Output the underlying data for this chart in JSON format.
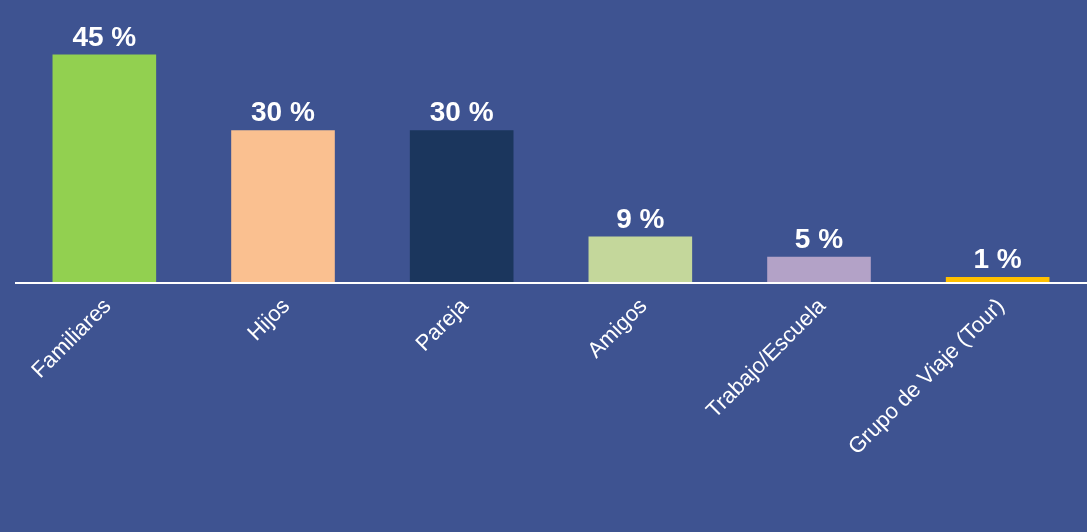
{
  "chart_data": {
    "type": "bar",
    "categories": [
      "Familiares",
      "Hijos",
      "Pareja",
      "Amigos",
      "Trabajo/Escuela",
      "Grupo de Viaje (Tour)"
    ],
    "values": [
      45,
      30,
      30,
      9,
      5,
      1
    ],
    "colors": [
      "#92d050",
      "#fac090",
      "#1b365d",
      "#c4d79b",
      "#b3a2c7",
      "#ffc000"
    ],
    "value_labels": [
      "45 %",
      "30 %",
      "30 %",
      "9 %",
      "5 %",
      "1 %"
    ]
  }
}
